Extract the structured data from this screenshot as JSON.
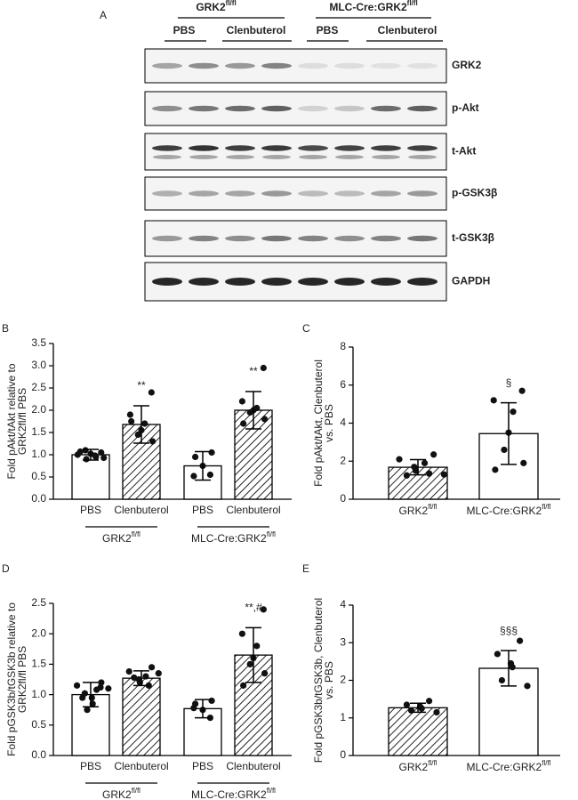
{
  "blot": {
    "panel": "A",
    "groups": [
      "GRK2",
      "MLC-Cre:GRK2"
    ],
    "group_sups": [
      "fl/fl",
      "fl/fl"
    ],
    "lanes": [
      "PBS",
      "Clenbuterol",
      "PBS",
      "Clenbuterol"
    ],
    "proteins": [
      "GRK2",
      "p-Akt",
      "t-Akt",
      "p-GSK3β",
      "t-GSK3β",
      "GAPDH"
    ]
  },
  "chart_data": [
    {
      "type": "bar",
      "panel": "B",
      "ylabel": [
        "Fold pAkt/tAkt relative to",
        "GRK2fl/fl PBS"
      ],
      "categories": [
        "PBS",
        "Clenbuterol",
        "PBS",
        "Clenbuterol"
      ],
      "groups": [
        "GRK2",
        "MLC-Cre:GRK2"
      ],
      "group_sups": [
        "fl/fl",
        "fl/fl"
      ],
      "values": [
        1.0,
        1.68,
        0.75,
        2.0
      ],
      "errors": [
        0.12,
        0.42,
        0.32,
        0.42
      ],
      "points": [
        [
          1.05,
          1.0,
          0.95,
          0.9,
          1.02,
          0.98,
          1.1,
          0.93,
          1.07
        ],
        [
          2.4,
          1.9,
          1.7,
          1.55,
          1.45,
          1.3,
          1.75
        ],
        [
          1.05,
          0.95,
          0.75,
          0.55,
          0.52
        ],
        [
          2.95,
          2.2,
          2.05,
          2.0,
          1.95,
          1.8,
          1.7
        ]
      ],
      "fills": [
        "plain",
        "hatched",
        "plain",
        "hatched"
      ],
      "annotations": [
        null,
        "**",
        null,
        "**"
      ],
      "ylim": [
        0,
        3.5
      ],
      "yticks": [
        {
          "value": 0,
          "label": "0.0"
        },
        0.5,
        {
          "value": 1,
          "label": "1.0"
        },
        1.5,
        {
          "value": 2,
          "label": "2.0"
        },
        2.5,
        {
          "value": 3,
          "label": "3.0"
        },
        3.5
      ]
    },
    {
      "type": "bar",
      "panel": "C",
      "ylabel": [
        "Fold pAkt/tAkt, Clenbuterol",
        "vs. PBS"
      ],
      "categories": [
        "GRK2",
        "MLC-Cre:GRK2"
      ],
      "category_sups": [
        "fl/fl",
        "fl/fl"
      ],
      "values": [
        1.68,
        3.45
      ],
      "errors": [
        0.4,
        1.62
      ],
      "points": [
        [
          2.35,
          2.1,
          1.9,
          1.7,
          1.5,
          1.35,
          1.25,
          1.3
        ],
        [
          5.7,
          5.2,
          4.6,
          3.5,
          2.6,
          1.9,
          1.55
        ]
      ],
      "fills": [
        "hatched",
        "plain"
      ],
      "annotations": [
        null,
        "§"
      ],
      "ylim": [
        0,
        8
      ],
      "yticks": [
        0,
        2,
        4,
        6,
        8
      ]
    },
    {
      "type": "bar",
      "panel": "D",
      "ylabel": [
        "Fold pGSK3b/tGSK3b relative to",
        "GRK2fl/fl PBS"
      ],
      "categories": [
        "PBS",
        "Clenbuterol",
        "PBS",
        "Clenbuterol"
      ],
      "groups": [
        "GRK2",
        "MLC-Cre:GRK2"
      ],
      "group_sups": [
        "fl/fl",
        "fl/fl"
      ],
      "values": [
        1.0,
        1.27,
        0.77,
        1.65
      ],
      "errors": [
        0.2,
        0.12,
        0.15,
        0.45
      ],
      "points": [
        [
          1.2,
          1.15,
          1.08,
          1.02,
          0.95,
          0.85,
          0.75,
          1.12,
          0.95,
          1.1
        ],
        [
          1.45,
          1.38,
          1.3,
          1.25,
          1.2,
          1.15,
          1.28,
          1.35
        ],
        [
          0.9,
          0.85,
          0.75,
          0.62,
          0.78
        ],
        [
          2.4,
          2.0,
          1.8,
          1.6,
          1.5,
          1.35,
          1.15
        ]
      ],
      "fills": [
        "plain",
        "hatched",
        "plain",
        "hatched"
      ],
      "annotations": [
        null,
        null,
        null,
        "**,#"
      ],
      "ylim": [
        0,
        2.5
      ],
      "yticks": [
        {
          "value": 0,
          "label": "0.0"
        },
        0.5,
        {
          "value": 1,
          "label": "1.0"
        },
        1.5,
        {
          "value": 2,
          "label": "2.0"
        },
        2.5
      ]
    },
    {
      "type": "bar",
      "panel": "E",
      "ylabel": [
        "Fold pGSK3b/tGSK3b, Clenbuterol",
        "vs. PBS"
      ],
      "categories": [
        "GRK2",
        "MLC-Cre:GRK2"
      ],
      "category_sups": [
        "fl/fl",
        "fl/fl"
      ],
      "values": [
        1.27,
        2.32
      ],
      "errors": [
        0.12,
        0.47
      ],
      "points": [
        [
          1.45,
          1.35,
          1.3,
          1.25,
          1.2,
          1.15
        ],
        [
          3.05,
          2.7,
          2.45,
          2.35,
          2.0,
          1.85
        ]
      ],
      "fills": [
        "hatched",
        "plain"
      ],
      "annotations": [
        null,
        "§§§"
      ],
      "ylim": [
        0,
        4
      ],
      "yticks": [
        0,
        1,
        2,
        3,
        4
      ]
    }
  ]
}
